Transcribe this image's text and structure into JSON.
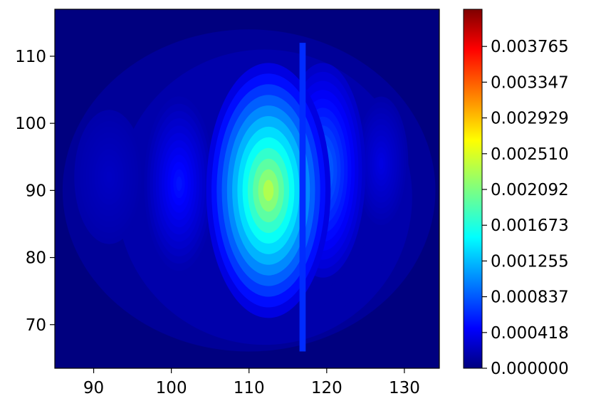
{
  "chart_data": {
    "type": "heatmap",
    "subtype": "filled-contour",
    "colormap": "jet",
    "xlim": [
      85,
      134.5
    ],
    "ylim": [
      63.5,
      117
    ],
    "x_ticks": [
      "90",
      "100",
      "110",
      "120",
      "130"
    ],
    "y_ticks": [
      "70",
      "80",
      "90",
      "100",
      "110"
    ],
    "colorbar": {
      "range": [
        0.0,
        0.0042
      ],
      "ticks": [
        "0.000000",
        "0.000418",
        "0.000837",
        "0.001255",
        "0.001673",
        "0.002092",
        "0.002510",
        "0.002929",
        "0.003347",
        "0.003765"
      ]
    },
    "peaks": [
      {
        "x": 113,
        "y": 93,
        "value": 0.0023
      },
      {
        "x": 119.5,
        "y": 93,
        "value": 0.001
      },
      {
        "x": 101,
        "y": 91,
        "value": 0.0006
      },
      {
        "x": 127,
        "y": 94,
        "value": 0.0004
      },
      {
        "x": 92,
        "y": 92,
        "value": 0.00028
      }
    ]
  }
}
